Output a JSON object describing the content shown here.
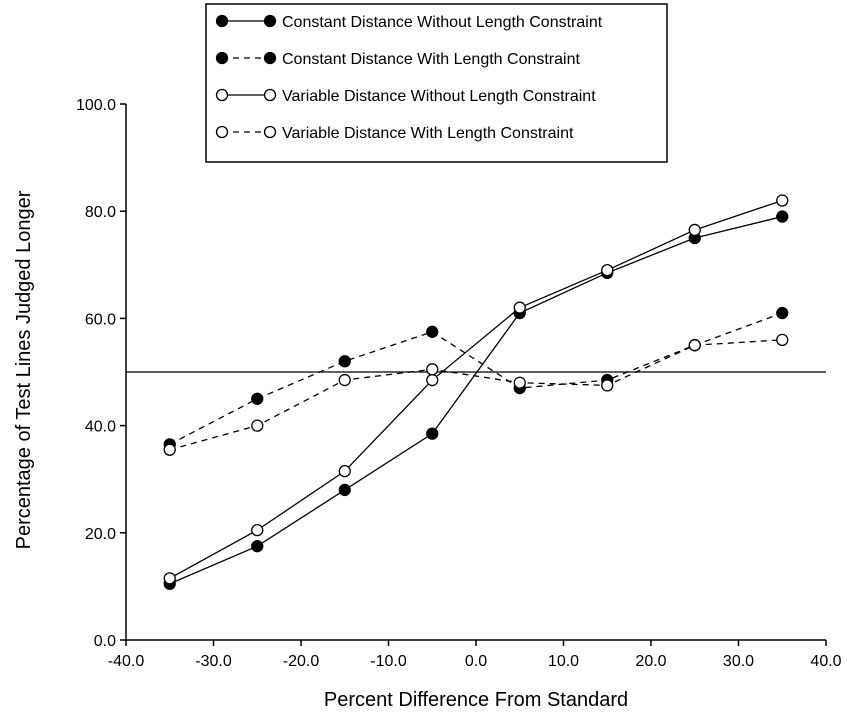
{
  "chart_data": {
    "type": "line",
    "title": "",
    "xlabel": "Percent Difference From Standard",
    "ylabel": "Percentage of Test Lines Judged Longer",
    "xlim": [
      -40,
      40
    ],
    "ylim": [
      0,
      100
    ],
    "x_ticks": [
      "-40.0",
      "-30.0",
      "-20.0",
      "-10.0",
      "0.0",
      "10.0",
      "20.0",
      "30.0",
      "40.0"
    ],
    "y_ticks": [
      "0.0",
      "20.0",
      "40.0",
      "60.0",
      "80.0",
      "100.0"
    ],
    "reference_line": 50,
    "legend_placement": "top-center",
    "x": [
      -35,
      -25,
      -15,
      -5,
      5,
      15,
      25,
      35
    ],
    "series": [
      {
        "name": "Constant Distance Without Length Constraint",
        "marker": "filled",
        "line": "solid",
        "values": [
          10.5,
          17.5,
          28.0,
          38.5,
          61.0,
          68.5,
          75.0,
          79.0
        ]
      },
      {
        "name": "Constant Distance With Length Constraint",
        "marker": "filled",
        "line": "dashed",
        "values": [
          36.5,
          45.0,
          52.0,
          57.5,
          47.0,
          48.5,
          55.0,
          61.0
        ]
      },
      {
        "name": "Variable Distance Without Length Constraint",
        "marker": "open",
        "line": "solid",
        "values": [
          11.5,
          20.5,
          31.5,
          48.5,
          62.0,
          69.0,
          76.5,
          82.0
        ]
      },
      {
        "name": "Variable Distance With Length Constraint",
        "marker": "open",
        "line": "dashed",
        "values": [
          35.5,
          40.0,
          48.5,
          50.5,
          48.0,
          47.5,
          55.0,
          56.0
        ]
      }
    ]
  }
}
